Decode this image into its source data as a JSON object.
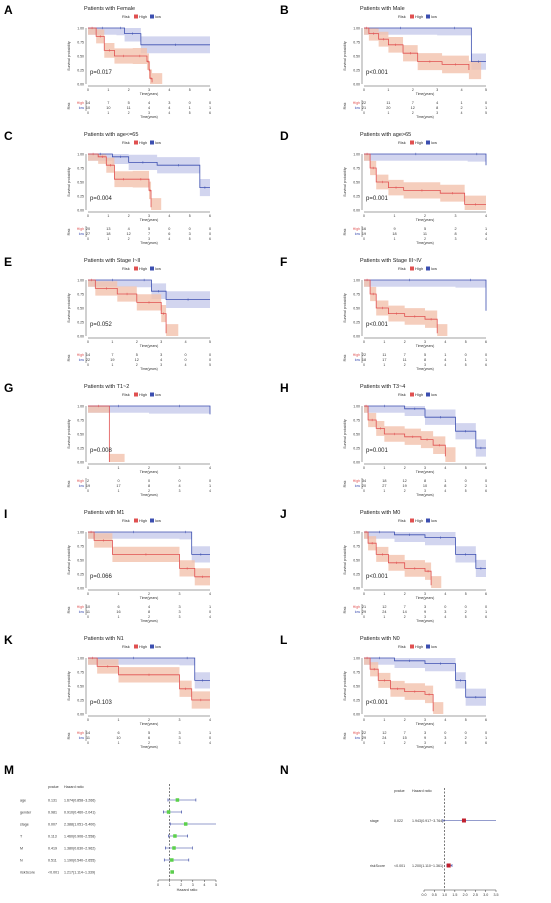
{
  "km_legend": {
    "title": "Risk",
    "high": "High",
    "low": "low"
  },
  "km_common": {
    "ylabel": "Survival probability",
    "xlabel": "Time(years)",
    "yticks": [
      "1.00",
      "0.75",
      "0.50",
      "0.25",
      "0.00"
    ],
    "risk_label": "Risk"
  },
  "colors": {
    "high": "#e05050",
    "low": "#3c4fb0",
    "high_band": "#f3c2ad",
    "low_band": "#c7cbeb"
  },
  "chart_data": [
    {
      "letter": "A",
      "title": "Patients with Female",
      "pvalue": "p=0.017",
      "xmax": 6,
      "high": {
        "t": [
          0,
          0.4,
          0.8,
          1.3,
          2.2,
          2.9,
          3.0,
          3.05,
          3.15
        ],
        "s": [
          1,
          0.85,
          0.6,
          0.5,
          0.5,
          0.4,
          0.25,
          0.1,
          0.03
        ]
      },
      "low": {
        "t": [
          0,
          1.4,
          1.8,
          2.6,
          6
        ],
        "s": [
          1,
          1,
          0.9,
          0.7,
          0.7
        ]
      },
      "risk": {
        "high": [
          "14",
          "7",
          "5",
          "4",
          "3",
          "0",
          "0"
        ],
        "low": [
          "10",
          "10",
          "11",
          "4",
          "4",
          "1",
          "1"
        ]
      }
    },
    {
      "letter": "B",
      "title": "Patients with Male",
      "pvalue": "p<0.001",
      "xmax": 5,
      "high": {
        "t": [
          0,
          0.2,
          0.6,
          1.0,
          1.6,
          2.2,
          3.2,
          4.3
        ],
        "s": [
          1,
          0.9,
          0.8,
          0.7,
          0.55,
          0.4,
          0.35,
          0.25
        ]
      },
      "low": {
        "t": [
          0,
          3.0,
          4.4,
          5
        ],
        "s": [
          1,
          1,
          0.4,
          0.4
        ]
      },
      "risk": {
        "high": [
          "22",
          "11",
          "7",
          "4",
          "1",
          "0"
        ],
        "low": [
          "21",
          "20",
          "12",
          "8",
          "2",
          "1"
        ]
      }
    },
    {
      "letter": "C",
      "title": "Patients with age<=65",
      "pvalue": "p=0.004",
      "xmax": 6,
      "high": {
        "t": [
          0,
          0.5,
          0.9,
          1.3,
          2.2,
          3.0,
          3.1
        ],
        "s": [
          1,
          0.95,
          0.8,
          0.55,
          0.55,
          0.35,
          0.05
        ]
      },
      "low": {
        "t": [
          0,
          1.2,
          2.0,
          3.4,
          5.5,
          6
        ],
        "s": [
          1,
          0.95,
          0.85,
          0.8,
          0.4,
          0.4
        ]
      },
      "risk": {
        "high": [
          "20",
          "13",
          "4",
          "5",
          "0",
          "0",
          "0"
        ],
        "low": [
          "27",
          "18",
          "12",
          "7",
          "6",
          "3",
          "0"
        ]
      }
    },
    {
      "letter": "D",
      "title": "Patients with age>65",
      "pvalue": "p=0.001",
      "xmax": 4,
      "high": {
        "t": [
          0,
          0.2,
          0.4,
          0.8,
          1.3,
          2.5,
          3.3,
          4
        ],
        "s": [
          1,
          0.75,
          0.5,
          0.4,
          0.35,
          0.3,
          0.1,
          0.1
        ]
      },
      "low": {
        "t": [
          0,
          3.4,
          4
        ],
        "s": [
          1,
          1,
          0.8
        ]
      },
      "risk": {
        "high": [
          "16",
          "9",
          "5",
          "2",
          "1"
        ],
        "low": [
          "19",
          "18",
          "11",
          "8",
          "4"
        ]
      }
    },
    {
      "letter": "E",
      "title": "Patients with Stage I~II",
      "pvalue": "p=0.052",
      "xmax": 5,
      "high": {
        "t": [
          0,
          0.3,
          1.2,
          2.0,
          3.0,
          3.2
        ],
        "s": [
          1,
          0.85,
          0.75,
          0.6,
          0.4,
          0.05
        ]
      },
      "low": {
        "t": [
          0,
          2.0,
          2.6,
          3.2,
          5
        ],
        "s": [
          1,
          1,
          0.8,
          0.65,
          0.65
        ]
      },
      "risk": {
        "high": [
          "14",
          "7",
          "5",
          "3",
          "0",
          "0"
        ],
        "low": [
          "22",
          "19",
          "12",
          "4",
          "0",
          "0"
        ]
      }
    },
    {
      "letter": "F",
      "title": "Patients with Stage III~IV",
      "pvalue": "p<0.001",
      "xmax": 6,
      "high": {
        "t": [
          0,
          0.3,
          0.6,
          1.2,
          2.0,
          3.0,
          3.6
        ],
        "s": [
          1,
          0.75,
          0.5,
          0.4,
          0.35,
          0.3,
          0.05
        ]
      },
      "low": {
        "t": [
          0,
          4.5,
          6
        ],
        "s": [
          1,
          1,
          0.45
        ]
      },
      "risk": {
        "high": [
          "22",
          "11",
          "7",
          "5",
          "1",
          "0",
          "0"
        ],
        "low": [
          "18",
          "17",
          "11",
          "8",
          "4",
          "1",
          "1"
        ]
      }
    },
    {
      "letter": "G",
      "title": "Patients with T1~2",
      "pvalue": "p=0.008",
      "xmax": 4,
      "high": {
        "t": [
          0,
          0.7
        ],
        "s": [
          1,
          0
        ]
      },
      "low": {
        "t": [
          0,
          2.0,
          4
        ],
        "s": [
          1,
          1,
          0.85
        ]
      },
      "risk": {
        "high": [
          "2",
          "0",
          "0",
          "0",
          "0"
        ],
        "low": [
          "19",
          "17",
          "8",
          "4",
          "1"
        ]
      }
    },
    {
      "letter": "H",
      "title": "Patients with T3~4",
      "pvalue": "p=0.001",
      "xmax": 6,
      "high": {
        "t": [
          0,
          0.2,
          0.6,
          1.0,
          2.0,
          2.8,
          3.4,
          4.0
        ],
        "s": [
          1,
          0.75,
          0.6,
          0.5,
          0.45,
          0.4,
          0.3,
          0.1
        ]
      },
      "low": {
        "t": [
          0,
          2.0,
          3.0,
          4.5,
          5.5,
          6
        ],
        "s": [
          1,
          0.95,
          0.8,
          0.55,
          0.25,
          0.25
        ]
      },
      "risk": {
        "high": [
          "34",
          "18",
          "12",
          "8",
          "1",
          "0",
          "0"
        ],
        "low": [
          "20",
          "27",
          "19",
          "10",
          "8",
          "2",
          "1"
        ]
      }
    },
    {
      "letter": "I",
      "title": "Patients with M1",
      "pvalue": "p=0.066",
      "xmax": 4,
      "high": {
        "t": [
          0,
          0.2,
          0.8,
          3.0,
          3.5,
          4
        ],
        "s": [
          1,
          0.85,
          0.6,
          0.35,
          0.2,
          0.2
        ]
      },
      "low": {
        "t": [
          0,
          3.0,
          3.4,
          4
        ],
        "s": [
          1,
          1,
          0.6,
          0.6
        ]
      },
      "risk": {
        "high": [
          "10",
          "6",
          "4",
          "3",
          "1"
        ],
        "low": [
          "11",
          "16",
          "8",
          "3",
          "0"
        ]
      }
    },
    {
      "letter": "J",
      "title": "Patients with M0",
      "pvalue": "p<0.001",
      "xmax": 6,
      "high": {
        "t": [
          0,
          0.2,
          0.6,
          1.2,
          2.0,
          3.0,
          3.3
        ],
        "s": [
          1,
          0.8,
          0.6,
          0.45,
          0.35,
          0.3,
          0.05
        ]
      },
      "low": {
        "t": [
          0,
          1.5,
          3.0,
          4.5,
          5.5,
          6
        ],
        "s": [
          1,
          0.95,
          0.9,
          0.6,
          0.35,
          0.35
        ]
      },
      "risk": {
        "high": [
          "21",
          "12",
          "7",
          "3",
          "0",
          "0",
          "0"
        ],
        "low": [
          "29",
          "24",
          "14",
          "9",
          "3",
          "2",
          "1"
        ]
      }
    },
    {
      "letter": "K",
      "title": "Patients with N1",
      "pvalue": "p=0.103",
      "xmax": 4,
      "high": {
        "t": [
          0,
          0.3,
          1.0,
          3.0,
          3.4,
          4
        ],
        "s": [
          1,
          0.85,
          0.7,
          0.45,
          0.25,
          0.25
        ]
      },
      "low": {
        "t": [
          0,
          3.0,
          3.5,
          4
        ],
        "s": [
          1,
          1,
          0.6,
          0.6
        ]
      },
      "risk": {
        "high": [
          "14",
          "6",
          "5",
          "3",
          "1"
        ],
        "low": [
          "11",
          "10",
          "6",
          "3",
          "0"
        ]
      }
    },
    {
      "letter": "L",
      "title": "Patients with N0",
      "pvalue": "p<0.001",
      "xmax": 6,
      "high": {
        "t": [
          0,
          0.3,
          0.7,
          1.3,
          2.0,
          3.0,
          3.4
        ],
        "s": [
          1,
          0.8,
          0.6,
          0.45,
          0.4,
          0.35,
          0.05
        ]
      },
      "low": {
        "t": [
          0,
          1.5,
          3.0,
          4.5,
          5.0,
          6
        ],
        "s": [
          1,
          0.95,
          0.9,
          0.6,
          0.3,
          0.3
        ]
      },
      "risk": {
        "high": [
          "22",
          "12",
          "7",
          "3",
          "0",
          "0",
          "0"
        ],
        "low": [
          "29",
          "24",
          "15",
          "9",
          "3",
          "2",
          "1"
        ]
      }
    }
  ],
  "forest_m": {
    "type": "forest",
    "letter": "M",
    "col_p": "pvalue",
    "col_hr": "Hazard ratio",
    "xlabel": "Hazard ratio",
    "xlim": [
      0,
      5
    ],
    "ticks": [
      "0",
      "1",
      "2",
      "3",
      "4",
      "5"
    ],
    "rows": [
      {
        "label": "age",
        "p": "0.131",
        "hr_text": "1.674(0.858~3.266)",
        "hr": 1.674,
        "lo": 0.858,
        "hi": 3.266
      },
      {
        "label": "gender",
        "p": "0.981",
        "hr_text": "0.910(0.460~2.041)",
        "hr": 0.91,
        "lo": 0.46,
        "hi": 2.041
      },
      {
        "label": "stage",
        "p": "0.007",
        "hr_text": "2.388(1.051~5.400)",
        "hr": 2.388,
        "lo": 1.051,
        "hi": 5.4
      },
      {
        "label": "T",
        "p": "0.113",
        "hr_text": "1.460(0.906~2.558)",
        "hr": 1.46,
        "lo": 0.906,
        "hi": 2.558
      },
      {
        "label": "M",
        "p": "0.419",
        "hr_text": "1.380(0.630~2.962)",
        "hr": 1.38,
        "lo": 0.63,
        "hi": 2.962
      },
      {
        "label": "N",
        "p": "0.511",
        "hr_text": "1.190(0.540~2.655)",
        "hr": 1.19,
        "lo": 0.54,
        "hi": 2.655
      },
      {
        "label": "riskScore",
        "p": "<0.001",
        "hr_text": "1.217(1.114~1.339)",
        "hr": 1.217,
        "lo": 1.114,
        "hi": 1.339
      }
    ]
  },
  "forest_n": {
    "type": "forest",
    "letter": "N",
    "col_p": "pvalue",
    "col_hr": "Hazard ratio",
    "xlabel": "Hazard ratio",
    "xlim": [
      0,
      3.5
    ],
    "ticks": [
      "0.0",
      "0.5",
      "1.0",
      "1.5",
      "2.0",
      "2.5",
      "3.0",
      "3.5"
    ],
    "rows": [
      {
        "label": "stage",
        "p": "0.022",
        "hr_text": "1.943(0.917~3.764)",
        "hr": 1.943,
        "lo": 0.917,
        "hi": 3.764
      },
      {
        "label": "riskScore",
        "p": "<0.001",
        "hr_text": "1.200(1.110~1.361)",
        "hr": 1.2,
        "lo": 1.11,
        "hi": 1.361
      }
    ]
  }
}
